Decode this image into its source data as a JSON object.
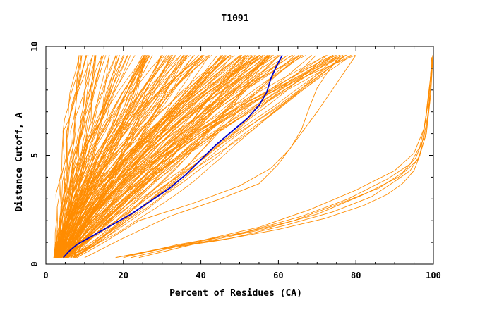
{
  "chart_data": {
    "type": "line",
    "title": "T1091",
    "xlabel": "Percent of Residues (CA)",
    "ylabel": "Distance Cutoff, A",
    "xlim": [
      0,
      100
    ],
    "ylim": [
      0,
      10
    ],
    "x_ticks": [
      0,
      20,
      40,
      60,
      80,
      100
    ],
    "y_ticks": [
      0,
      5,
      10
    ],
    "grid": false,
    "colors": {
      "models": "#ff8c00",
      "highlight": "#0000cc",
      "axes": "#000000"
    },
    "highlight": {
      "x": [
        4.5,
        6,
        8,
        12,
        17,
        22,
        27,
        32,
        36,
        40,
        44,
        48,
        52,
        55,
        57,
        58,
        59.5,
        61
      ],
      "y": [
        0.3,
        0.6,
        0.9,
        1.3,
        1.8,
        2.3,
        2.9,
        3.5,
        4.1,
        4.8,
        5.5,
        6.1,
        6.7,
        7.3,
        7.9,
        8.5,
        9.1,
        9.6
      ]
    },
    "band_families": [
      {
        "start_x": [
          2,
          4
        ],
        "end_x": [
          8,
          32
        ],
        "count": 60
      },
      {
        "start_x": [
          2,
          6
        ],
        "end_x": [
          32,
          60
        ],
        "count": 70
      },
      {
        "start_x": [
          3,
          8
        ],
        "end_x": [
          55,
          80
        ],
        "count": 50
      }
    ],
    "outlier_models": [
      {
        "x": [
          18,
          30,
          45,
          60,
          72,
          82,
          88,
          92,
          95,
          96.5,
          97.5,
          98.5,
          99.2,
          99.6
        ],
        "y": [
          0.3,
          0.7,
          1.1,
          1.6,
          2.1,
          2.7,
          3.2,
          3.7,
          4.3,
          5.0,
          6.0,
          7.5,
          8.5,
          9.5
        ]
      },
      {
        "x": [
          18,
          32,
          48,
          62,
          74,
          84,
          90,
          94,
          96.5,
          97.8,
          98.8,
          99.4,
          99.8
        ],
        "y": [
          0.3,
          0.8,
          1.2,
          1.8,
          2.4,
          3.1,
          3.8,
          4.3,
          5.0,
          5.8,
          7.0,
          8.5,
          9.6
        ]
      },
      {
        "x": [
          20,
          34,
          50,
          64,
          76,
          86,
          92,
          95.5,
          97.5,
          98.5,
          99.3,
          99.8
        ],
        "y": [
          0.3,
          0.9,
          1.4,
          2.0,
          2.8,
          3.5,
          4.2,
          4.9,
          5.8,
          6.8,
          8.2,
          9.4
        ]
      },
      {
        "x": [
          22,
          36,
          52,
          66,
          78,
          88,
          94,
          96.5,
          98,
          99,
          99.6
        ],
        "y": [
          0.3,
          0.9,
          1.5,
          2.2,
          3.0,
          3.9,
          4.6,
          5.4,
          6.6,
          8.0,
          9.5
        ]
      },
      {
        "x": [
          20,
          38,
          55,
          68,
          80,
          90,
          95,
          97.5,
          98.8,
          99.5
        ],
        "y": [
          0.35,
          1.0,
          1.7,
          2.5,
          3.4,
          4.3,
          5.1,
          6.2,
          7.6,
          9.2
        ]
      },
      {
        "x": [
          24,
          40,
          56,
          70,
          82,
          91,
          96,
          98.2,
          99.3,
          99.9
        ],
        "y": [
          0.3,
          1.0,
          1.6,
          2.3,
          3.2,
          4.0,
          4.8,
          6.0,
          7.8,
          9.6
        ]
      },
      {
        "x": [
          8,
          15,
          24,
          38,
          50,
          58,
          63,
          66,
          68,
          70,
          73,
          76
        ],
        "y": [
          0.3,
          1.0,
          2.0,
          2.8,
          3.6,
          4.4,
          5.3,
          6.2,
          7.2,
          8.1,
          8.9,
          9.6
        ]
      },
      {
        "x": [
          10,
          20,
          32,
          45,
          55,
          60,
          65,
          70,
          75,
          80
        ],
        "y": [
          0.3,
          1.2,
          2.2,
          3.0,
          3.7,
          4.6,
          5.8,
          7.0,
          8.3,
          9.6
        ]
      }
    ]
  }
}
